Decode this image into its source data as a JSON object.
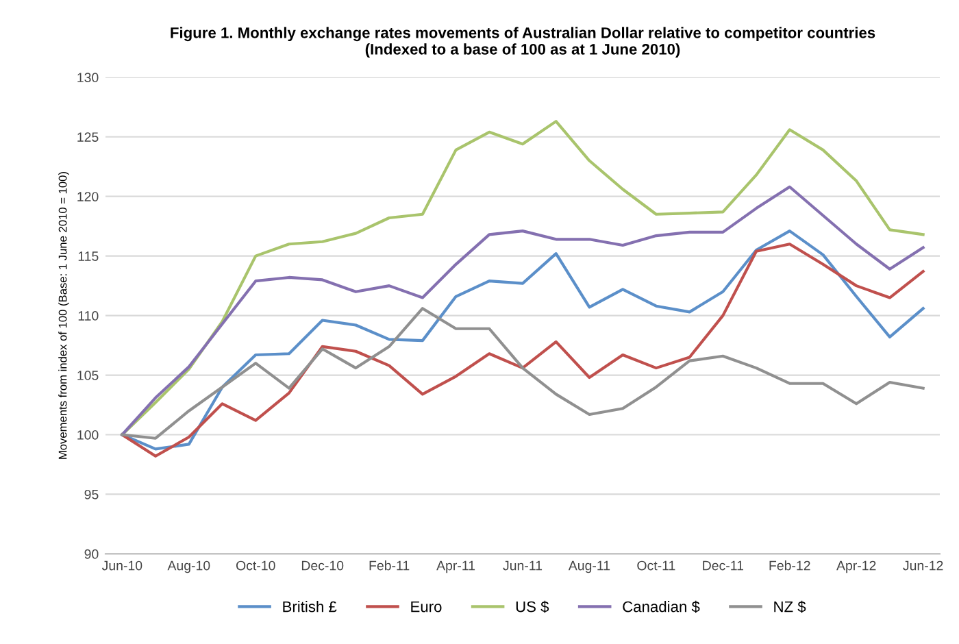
{
  "chart_data": {
    "type": "line",
    "title": "Figure 1. Monthly exchange rates movements of Australian Dollar relative to competitor countries\n(Indexed to a base of 100 as at 1 June 2010)",
    "ylabel": "Movements from index of 100 (Base: 1 June 2010 = 100)",
    "categories": [
      "Jun-10",
      null,
      "Aug-10",
      null,
      "Oct-10",
      null,
      "Dec-10",
      null,
      "Feb-11",
      null,
      "Apr-11",
      null,
      "Jun-11",
      null,
      "Aug-11",
      null,
      "Oct-11",
      null,
      "Dec-11",
      null,
      "Feb-12",
      null,
      "Apr-12",
      null,
      "Jun-12"
    ],
    "series": [
      {
        "name": "British £",
        "color": "#5b8fc9",
        "values": [
          100,
          98.8,
          99.2,
          104,
          106.7,
          106.8,
          109.6,
          109.2,
          108,
          107.9,
          111.6,
          112.9,
          112.7,
          115.2,
          110.7,
          112.2,
          110.8,
          110.3,
          112,
          115.5,
          117.1,
          115.1,
          111.6,
          108.2,
          110.6
        ]
      },
      {
        "name": "Euro",
        "color": "#c0504d",
        "values": [
          100,
          98.2,
          99.8,
          102.6,
          101.2,
          103.5,
          107.4,
          107,
          105.8,
          103.4,
          104.9,
          106.8,
          105.6,
          107.8,
          104.8,
          106.7,
          105.6,
          106.5,
          110,
          115.4,
          116,
          114.3,
          112.5,
          111.5,
          113.7
        ]
      },
      {
        "name": "US $",
        "color": "#a9c46c",
        "values": [
          100,
          102.7,
          105.5,
          109.5,
          115,
          116,
          116.2,
          116.9,
          118.2,
          118.5,
          123.9,
          125.4,
          124.4,
          126.3,
          123,
          120.6,
          118.5,
          118.6,
          118.7,
          121.8,
          125.6,
          123.9,
          121.3,
          117.2,
          116.8
        ]
      },
      {
        "name": "Canadian $",
        "color": "#8470b0",
        "values": [
          100,
          103.1,
          105.7,
          109.3,
          112.9,
          113.2,
          113,
          112,
          112.5,
          111.5,
          114.3,
          116.8,
          117.1,
          116.4,
          116.4,
          115.9,
          116.7,
          117,
          117,
          119,
          120.8,
          118.4,
          116,
          113.9,
          115.7
        ]
      },
      {
        "name": "NZ $",
        "color": "#909090",
        "values": [
          100,
          99.7,
          102,
          104,
          106,
          103.9,
          107.2,
          105.6,
          107.4,
          110.6,
          108.9,
          108.9,
          105.6,
          103.4,
          101.7,
          102.2,
          104,
          106.2,
          106.6,
          105.6,
          104.3,
          104.3,
          102.6,
          104.4,
          103.9
        ]
      }
    ],
    "ylim": [
      90,
      130
    ],
    "yticks": [
      90,
      95,
      100,
      105,
      110,
      115,
      120,
      125,
      130
    ],
    "grid": "y",
    "legend": "bottom",
    "marker": "none",
    "line_style": "solid"
  }
}
